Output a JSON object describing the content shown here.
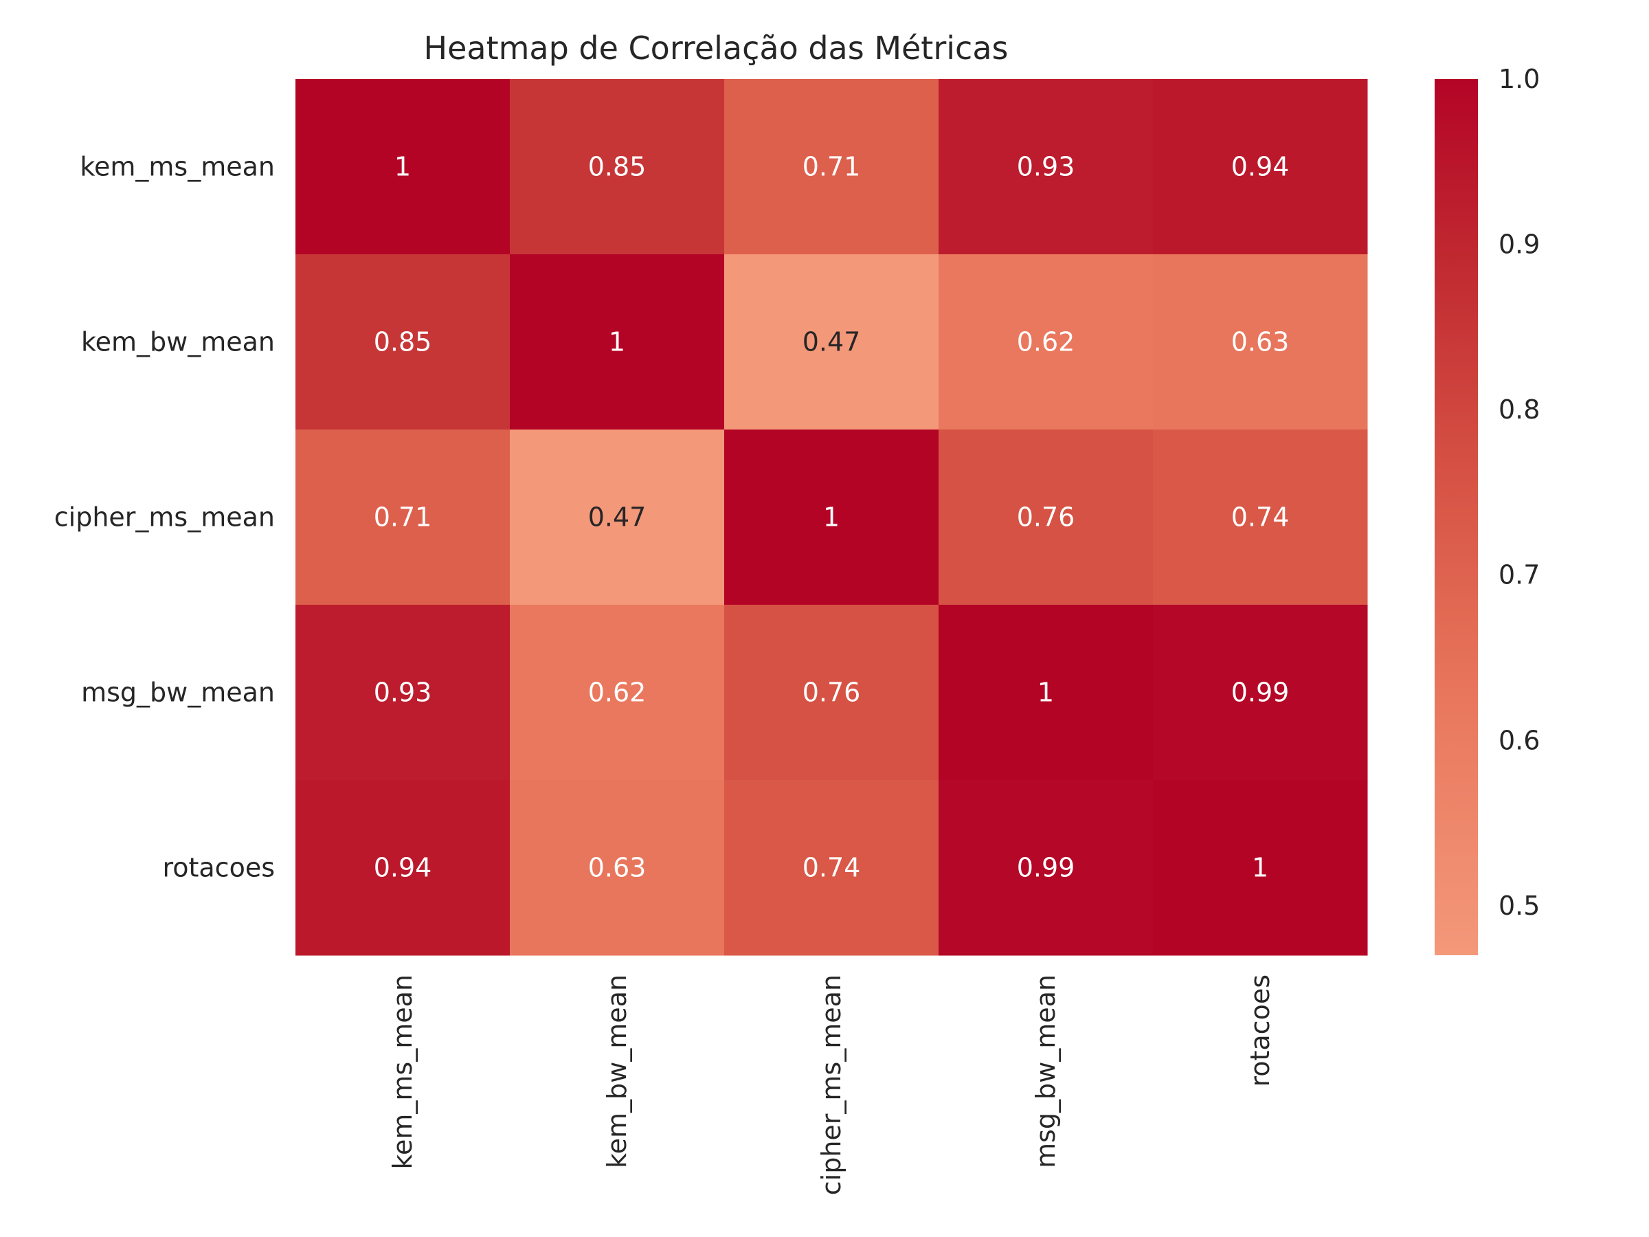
{
  "chart_data": {
    "type": "heatmap",
    "title": "Heatmap de Correlação das Métricas",
    "xlabel": "",
    "ylabel": "",
    "x_categories": [
      "kem_ms_mean",
      "kem_bw_mean",
      "cipher_ms_mean",
      "msg_bw_mean",
      "rotacoes"
    ],
    "y_categories": [
      "kem_ms_mean",
      "kem_bw_mean",
      "cipher_ms_mean",
      "msg_bw_mean",
      "rotacoes"
    ],
    "values": [
      [
        1.0,
        0.85,
        0.71,
        0.93,
        0.94
      ],
      [
        0.85,
        1.0,
        0.47,
        0.62,
        0.63
      ],
      [
        0.71,
        0.47,
        1.0,
        0.76,
        0.74
      ],
      [
        0.93,
        0.62,
        0.76,
        1.0,
        0.99
      ],
      [
        0.94,
        0.63,
        0.74,
        0.99,
        1.0
      ]
    ],
    "cell_labels": [
      [
        "1",
        "0.85",
        "0.71",
        "0.93",
        "0.94"
      ],
      [
        "0.85",
        "1",
        "0.47",
        "0.62",
        "0.63"
      ],
      [
        "0.71",
        "0.47",
        "1",
        "0.76",
        "0.74"
      ],
      [
        "0.93",
        "0.62",
        "0.76",
        "1",
        "0.99"
      ],
      [
        "0.94",
        "0.63",
        "0.74",
        "0.99",
        "1"
      ]
    ],
    "colorbar": {
      "min": 0.47,
      "max": 1.0,
      "ticks": [
        0.5,
        0.6,
        0.7,
        0.8,
        0.9,
        1.0
      ],
      "tick_labels": [
        "0.5",
        "0.6",
        "0.7",
        "0.8",
        "0.9",
        "1.0"
      ],
      "colormap": "coolwarm (upper half)",
      "color_low": "#f4987a",
      "color_high": "#b40426"
    },
    "x_tick_rotation": "vertical",
    "grid": false
  }
}
